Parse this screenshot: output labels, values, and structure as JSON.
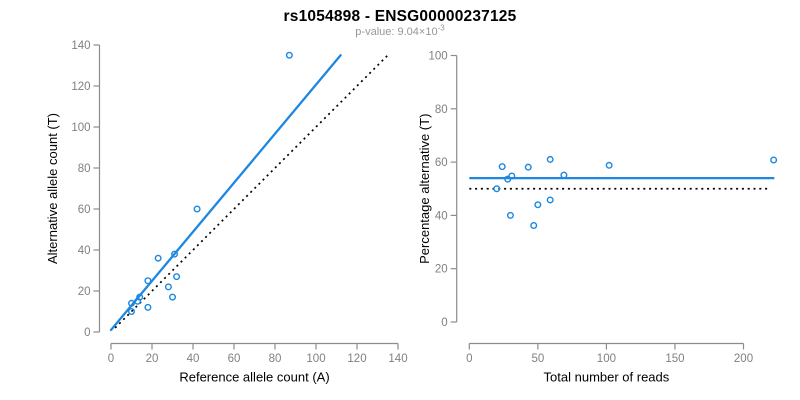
{
  "figure": {
    "title": "rs1054898 - ENSG00000237125",
    "subtitle_prefix": "p-value: 9.04×10",
    "subtitle_exponent": "-3"
  },
  "colors": {
    "accent_blue": "#1E87E0",
    "line_black": "#000000",
    "axis_gray": "#8C8C8C",
    "tick_label_gray": "#818181",
    "axis_title_black": "#000000",
    "title_black": "#000000",
    "subtitle_gray": "#979797"
  },
  "chart_data": [
    {
      "type": "scatter",
      "panel": "left",
      "xlabel": "Reference allele count (A)",
      "ylabel": "Alternative allele count (T)",
      "xlim": [
        0,
        140
      ],
      "ylim": [
        0,
        140
      ],
      "xticks": [
        0,
        20,
        40,
        60,
        80,
        100,
        120,
        140
      ],
      "yticks": [
        0,
        20,
        40,
        60,
        80,
        100,
        120,
        140
      ],
      "grid": false,
      "legend": "none",
      "points": [
        [
          87,
          135
        ],
        [
          42,
          60
        ],
        [
          23,
          36
        ],
        [
          31,
          38
        ],
        [
          18,
          25
        ],
        [
          10,
          14
        ],
        [
          13,
          15
        ],
        [
          14,
          17
        ],
        [
          10,
          10
        ],
        [
          28,
          22
        ],
        [
          32,
          27
        ],
        [
          18,
          12
        ],
        [
          30,
          17
        ]
      ],
      "regression_line": {
        "x1": 0,
        "y1": 1,
        "x2": 112,
        "y2": 135,
        "style": "solid"
      },
      "identity_line": {
        "x1": 2,
        "y1": 2,
        "x2": 136,
        "y2": 136,
        "style": "dotted"
      }
    },
    {
      "type": "scatter",
      "panel": "right",
      "xlabel": "Total number of reads",
      "ylabel": "Percentage alternative (T)",
      "xlim": [
        0,
        225
      ],
      "ylim": [
        0,
        100
      ],
      "xticks": [
        0,
        50,
        100,
        150,
        200
      ],
      "yticks": [
        0,
        20,
        40,
        60,
        80,
        100
      ],
      "grid": false,
      "legend": "none",
      "points": [
        [
          222,
          60.8
        ],
        [
          102,
          58.8
        ],
        [
          59,
          61
        ],
        [
          69,
          55.1
        ],
        [
          43,
          58.1
        ],
        [
          24,
          58.3
        ],
        [
          28,
          53.6
        ],
        [
          31,
          54.8
        ],
        [
          20,
          50
        ],
        [
          50,
          44
        ],
        [
          59,
          45.8
        ],
        [
          30,
          40
        ],
        [
          47,
          36.2
        ]
      ],
      "mean_line": {
        "y": 54,
        "x1": 0,
        "x2": 222.5,
        "style": "solid"
      },
      "null_line": {
        "y": 50,
        "x1": 0,
        "x2": 218.5,
        "style": "dotted"
      }
    }
  ]
}
